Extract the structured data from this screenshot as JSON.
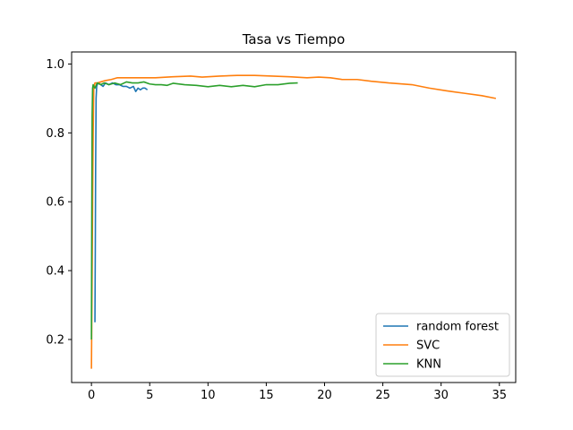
{
  "chart_data": {
    "type": "line",
    "title": "Tasa vs Tiempo",
    "xlabel": "",
    "ylabel": "",
    "xlim": [
      -1.7,
      36.4
    ],
    "ylim": [
      0.075,
      1.035
    ],
    "xticks": [
      0,
      5,
      10,
      15,
      20,
      25,
      30,
      35
    ],
    "yticks": [
      0.2,
      0.4,
      0.6,
      0.8,
      1.0
    ],
    "ytick_labels": [
      "0.2",
      "0.4",
      "0.6",
      "0.8",
      "1.0"
    ],
    "grid": false,
    "legend_position": "lower-right",
    "series": [
      {
        "name": "random forest",
        "color": "#1f77b4",
        "x": [
          0.3,
          0.33,
          0.36,
          0.4,
          0.45,
          0.5,
          0.6,
          0.8,
          1.0,
          1.2,
          1.5,
          1.8,
          2.1,
          2.4,
          2.7,
          3.0,
          3.3,
          3.6,
          3.8,
          4.0,
          4.2,
          4.4,
          4.6,
          4.8
        ],
        "y": [
          0.25,
          0.45,
          0.7,
          0.9,
          0.935,
          0.94,
          0.945,
          0.94,
          0.935,
          0.945,
          0.94,
          0.945,
          0.94,
          0.94,
          0.935,
          0.935,
          0.93,
          0.935,
          0.92,
          0.93,
          0.925,
          0.93,
          0.93,
          0.925
        ]
      },
      {
        "name": "SVC",
        "color": "#ff7f0e",
        "x": [
          0.0,
          0.05,
          0.1,
          0.15,
          0.2,
          0.3,
          0.5,
          0.8,
          1.2,
          1.7,
          2.2,
          3.0,
          4.0,
          5.5,
          7.0,
          8.5,
          9.5,
          11.0,
          12.5,
          14.0,
          15.5,
          17.0,
          18.5,
          19.5,
          20.5,
          21.5,
          22.8,
          24.0,
          25.5,
          27.5,
          29.0,
          30.5,
          32.0,
          33.5,
          34.7
        ],
        "y": [
          0.115,
          0.35,
          0.6,
          0.8,
          0.93,
          0.945,
          0.945,
          0.948,
          0.952,
          0.955,
          0.96,
          0.96,
          0.96,
          0.96,
          0.963,
          0.965,
          0.962,
          0.965,
          0.967,
          0.967,
          0.965,
          0.963,
          0.96,
          0.962,
          0.96,
          0.955,
          0.955,
          0.95,
          0.945,
          0.94,
          0.93,
          0.922,
          0.915,
          0.908,
          0.9
        ]
      },
      {
        "name": "KNN",
        "color": "#2ca02c",
        "x": [
          0.0,
          0.03,
          0.06,
          0.1,
          0.15,
          0.2,
          0.3,
          0.5,
          0.8,
          1.1,
          1.5,
          2.0,
          2.5,
          3.0,
          3.5,
          4.0,
          4.5,
          5.0,
          5.5,
          6.0,
          6.5,
          7.0,
          8.0,
          9.0,
          10.0,
          11.0,
          12.0,
          13.0,
          14.0,
          15.0,
          16.0,
          17.0,
          17.7
        ],
        "y": [
          0.2,
          0.55,
          0.85,
          0.93,
          0.94,
          0.935,
          0.93,
          0.945,
          0.94,
          0.945,
          0.94,
          0.945,
          0.94,
          0.948,
          0.945,
          0.945,
          0.948,
          0.942,
          0.94,
          0.94,
          0.938,
          0.944,
          0.94,
          0.938,
          0.934,
          0.938,
          0.934,
          0.938,
          0.934,
          0.94,
          0.94,
          0.944,
          0.945
        ]
      }
    ]
  }
}
